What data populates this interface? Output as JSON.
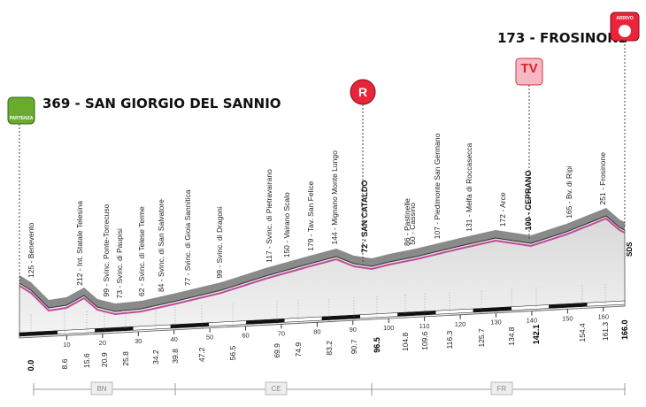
{
  "start": {
    "label": "369 - SAN GIORGIO DEL SANNIO",
    "badge": "PARTENZA"
  },
  "finish": {
    "label": "173 - FROSINONE",
    "badge": "ARRIVO"
  },
  "tv_badge": "TV",
  "r_badge": "R",
  "waypoints": [
    "125 - Benevento",
    "212 - Int. Statale Telesina",
    "99 - Svinc. Ponte-Torrecuso",
    "73 - Svinc. di Paupisi",
    "62 - Svinc. di Telese Terme",
    "84 - Svinc. di San Salvatore",
    "77 - Svinc. di Gioia Sannitica",
    "99 - Svinc. di Dragoni",
    "117 - Svinc. di Pietravairano",
    "150 - Vairano Scalo",
    "179 - Tav. San Felice",
    "144 - Mignano Monte Lungo",
    "72 - SAN CATALDO",
    "86 - Pastinelle",
    "50 - Cassino",
    "107 - Piedimonte San Germano",
    "131 - Melfa di Roccasecca",
    "172 - Arce",
    "100 - CEPRANO",
    "165 - Bv. di Ripi",
    "251 - Frosinone"
  ],
  "km": [
    "0.0",
    "8.6",
    "15.6",
    "20.9",
    "25.8",
    "34.2",
    "39.8",
    "47.2",
    "56.5",
    "69.9",
    "74.9",
    "83.2",
    "90.7",
    "96.5",
    "104.8",
    "109.6",
    "116.3",
    "125.7",
    "134.8",
    "142.1",
    "154.4",
    "161.3",
    "166.0"
  ],
  "scale_ticks": [
    "10",
    "20",
    "30",
    "40",
    "50",
    "60",
    "70",
    "80",
    "90",
    "100",
    "110",
    "120",
    "130",
    "140",
    "150",
    "160"
  ],
  "provinces": [
    "BN",
    "CE",
    "FR"
  ],
  "sds": "SDS"
}
